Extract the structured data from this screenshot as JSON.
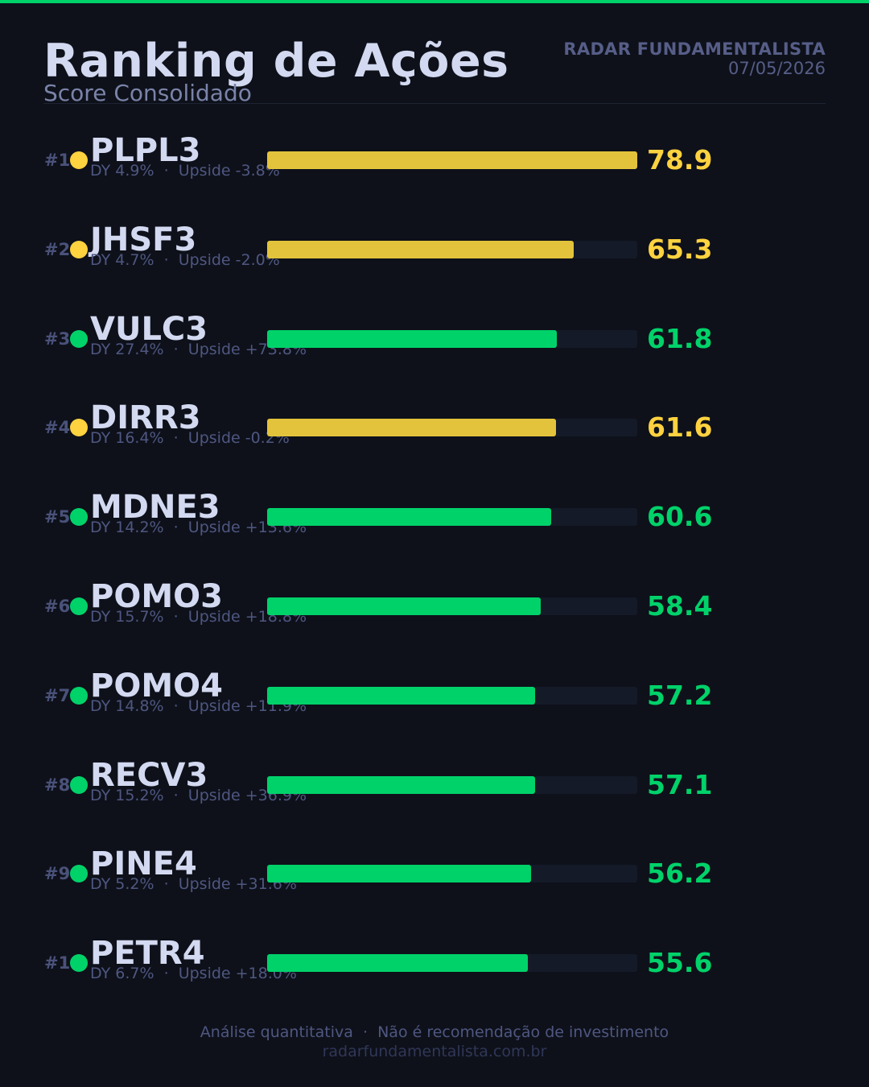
{
  "header": {
    "title": "Ranking de Ações",
    "subtitle": "Score Consolidado",
    "brand": "RADAR FUNDAMENTALISTA",
    "date": "07/05/2026"
  },
  "colors": {
    "green": "#00d26a",
    "yellow": "#e3c33b",
    "yellow_text": "#ffd23f"
  },
  "chart_data": {
    "type": "bar",
    "orientation": "horizontal",
    "xlim": [
      0,
      78.9
    ],
    "grid": false,
    "categories": [
      "PLPL3",
      "JHSF3",
      "VULC3",
      "DIRR3",
      "MDNE3",
      "POMO3",
      "POMO4",
      "RECV3",
      "PINE4",
      "PETR4"
    ],
    "values": [
      78.9,
      65.3,
      61.8,
      61.6,
      60.6,
      58.4,
      57.2,
      57.1,
      56.2,
      55.6
    ],
    "rows": [
      {
        "rank": "#1",
        "ticker": "PLPL3",
        "score": "78.9",
        "value": 78.9,
        "meta": "DY 4.9%  ·  Upside -3.8%",
        "color": "yellow"
      },
      {
        "rank": "#2",
        "ticker": "JHSF3",
        "score": "65.3",
        "value": 65.3,
        "meta": "DY 4.7%  ·  Upside -2.0%",
        "color": "yellow"
      },
      {
        "rank": "#3",
        "ticker": "VULC3",
        "score": "61.8",
        "value": 61.8,
        "meta": "DY 27.4%  ·  Upside +73.8%",
        "color": "green"
      },
      {
        "rank": "#4",
        "ticker": "DIRR3",
        "score": "61.6",
        "value": 61.6,
        "meta": "DY 16.4%  ·  Upside -0.2%",
        "color": "yellow"
      },
      {
        "rank": "#5",
        "ticker": "MDNE3",
        "score": "60.6",
        "value": 60.6,
        "meta": "DY 14.2%  ·  Upside +13.6%",
        "color": "green"
      },
      {
        "rank": "#6",
        "ticker": "POMO3",
        "score": "58.4",
        "value": 58.4,
        "meta": "DY 15.7%  ·  Upside +18.8%",
        "color": "green"
      },
      {
        "rank": "#7",
        "ticker": "POMO4",
        "score": "57.2",
        "value": 57.2,
        "meta": "DY 14.8%  ·  Upside +11.9%",
        "color": "green"
      },
      {
        "rank": "#8",
        "ticker": "RECV3",
        "score": "57.1",
        "value": 57.1,
        "meta": "DY 15.2%  ·  Upside +36.9%",
        "color": "green"
      },
      {
        "rank": "#9",
        "ticker": "PINE4",
        "score": "56.2",
        "value": 56.2,
        "meta": "DY 5.2%  ·  Upside +31.6%",
        "color": "green"
      },
      {
        "rank": "#10",
        "ticker": "PETR4",
        "score": "55.6",
        "value": 55.6,
        "meta": "DY 6.7%  ·  Upside +18.0%",
        "color": "green"
      }
    ]
  },
  "footer": {
    "disclaimer": "Análise quantitativa  ·  Não é recomendação de investimento",
    "url": "radarfundamentalista.com.br"
  }
}
